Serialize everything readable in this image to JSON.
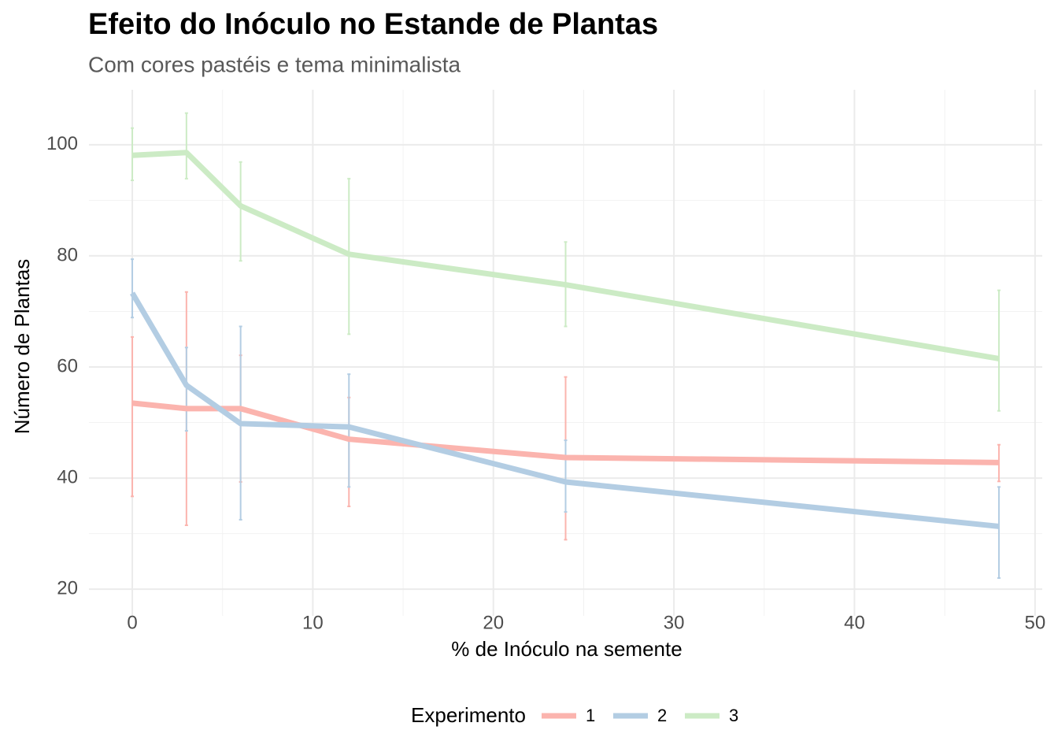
{
  "chart_data": {
    "type": "line",
    "title": "Efeito do Inóculo no Estande de Plantas",
    "subtitle": "Com cores pastéis e tema minimalista",
    "x_label": "% de Inóculo na semente",
    "y_label": "Número de Plantas",
    "legend_title": "Experimento",
    "legend_position": "bottom",
    "x": [
      0,
      3,
      6,
      12,
      24,
      48
    ],
    "series": [
      {
        "name": "1",
        "color": "#FBB4AE",
        "values": [
          53.5,
          52.5,
          52.5,
          47,
          43.7,
          42.8
        ],
        "ymin": [
          36.7,
          31.5,
          39.3,
          34.9,
          28.9,
          39.4
        ],
        "ymax": [
          65.4,
          73.5,
          62.1,
          54.5,
          58.2,
          46
        ]
      },
      {
        "name": "2",
        "color": "#B3CDE3",
        "values": [
          73.3,
          56.7,
          49.8,
          49.2,
          39.3,
          31.3
        ],
        "ymin": [
          68.9,
          48.5,
          32.5,
          38.4,
          33.9,
          22
        ],
        "ymax": [
          79.4,
          63.5,
          67.3,
          58.7,
          46.8,
          38.4
        ]
      },
      {
        "name": "3",
        "color": "#CCEBC5",
        "values": [
          98.1,
          98.6,
          89,
          80.3,
          74.8,
          61.5
        ],
        "ymin": [
          93.6,
          93.9,
          79.1,
          65.9,
          67.3,
          52.1
        ],
        "ymax": [
          103,
          105.7,
          96.9,
          93.9,
          82.5,
          73.8
        ]
      }
    ],
    "xlim": [
      -2.4,
      50.4
    ],
    "ylim": [
      15.2,
      109.9
    ],
    "xticks": [
      0,
      10,
      20,
      30,
      40,
      50
    ],
    "yticks": [
      20,
      40,
      60,
      80,
      100
    ],
    "x_minor_ticks": [
      5,
      15,
      25,
      35,
      45
    ],
    "y_minor_ticks": [
      30,
      50,
      70,
      90
    ],
    "grid": true
  }
}
